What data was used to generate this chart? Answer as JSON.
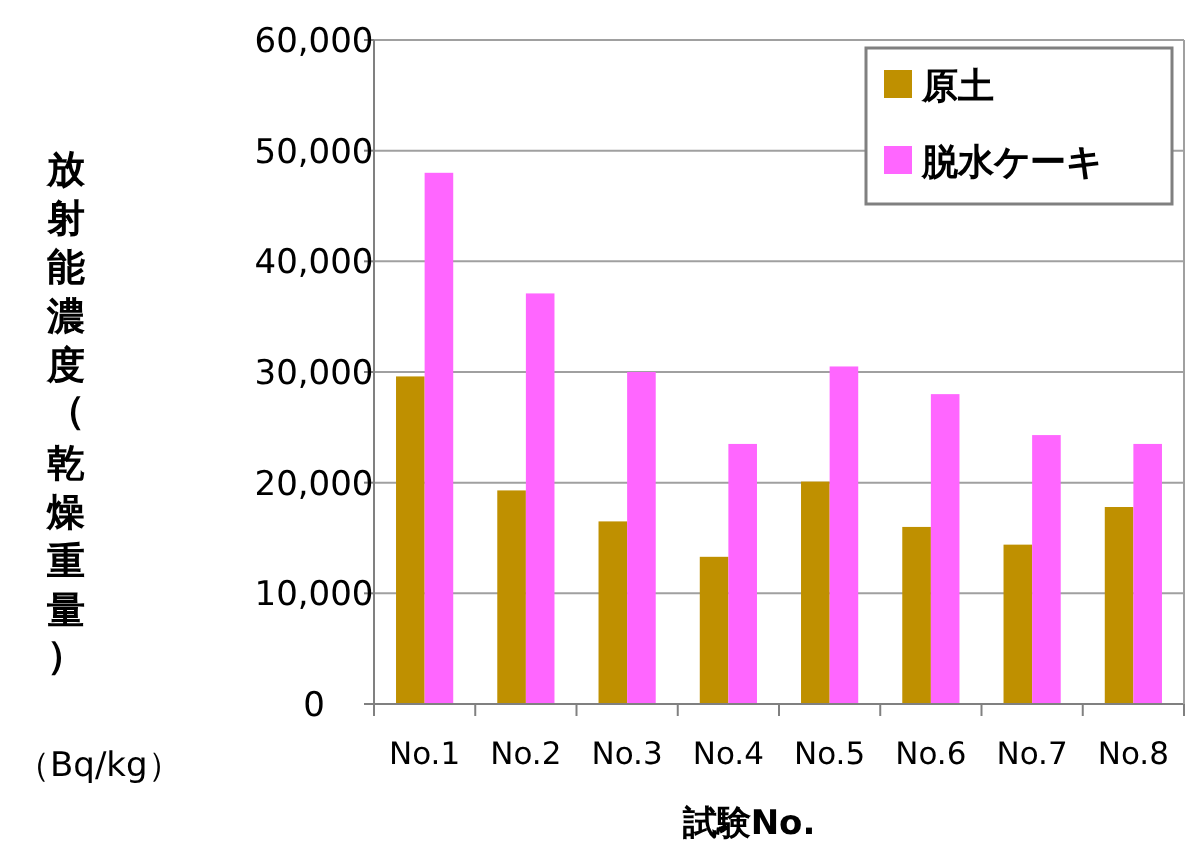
{
  "chart_data": {
    "type": "bar",
    "xlabel": "試験No.",
    "ylabel": "放射能濃度（乾燥重量）",
    "annotations": [
      "（Bq/kg）"
    ],
    "categories": [
      "No.1",
      "No.2",
      "No.3",
      "No.4",
      "No.5",
      "No.6",
      "No.7",
      "No.8"
    ],
    "series": [
      {
        "name": "原土",
        "color": "#bf9000",
        "values": [
          29600,
          19300,
          16500,
          13300,
          20100,
          16000,
          14400,
          17800
        ]
      },
      {
        "name": "脱水ケーキ",
        "color": "#ff66ff",
        "values": [
          48000,
          37100,
          30000,
          23500,
          30500,
          28000,
          24300,
          23500
        ]
      }
    ],
    "ylim": [
      0,
      60000
    ],
    "yticks": [
      {
        "value": 0,
        "label": "0"
      },
      {
        "value": 10000,
        "label": "10,000"
      },
      {
        "value": 20000,
        "label": "20,000"
      },
      {
        "value": 30000,
        "label": "30,000"
      },
      {
        "value": 40000,
        "label": "40,000"
      },
      {
        "value": 50000,
        "label": "50,000"
      },
      {
        "value": 60000,
        "label": "60,000"
      }
    ],
    "grid": "y",
    "legend": "top right"
  }
}
